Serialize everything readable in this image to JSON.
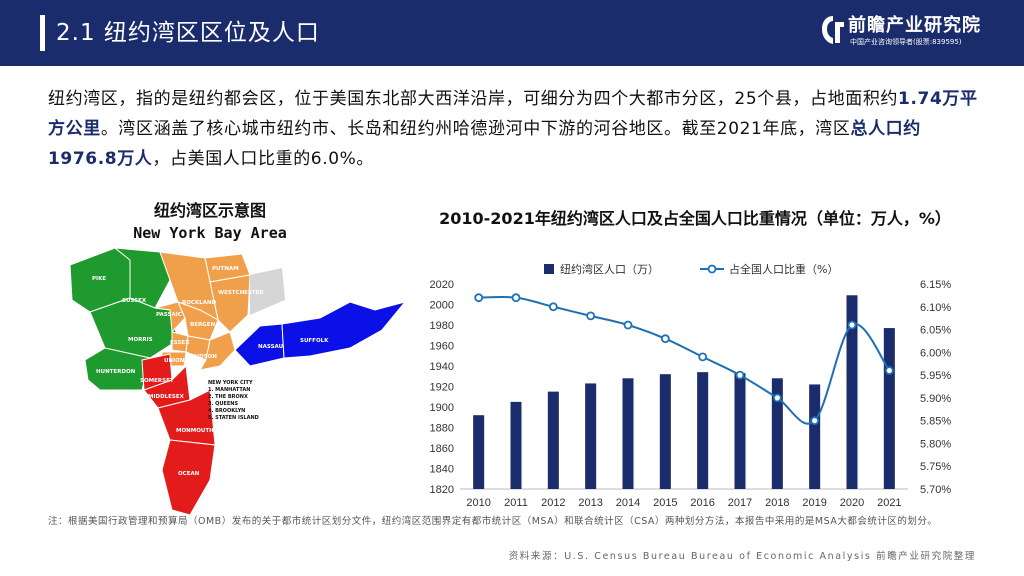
{
  "header": {
    "title": "2.1 纽约湾区区位及人口",
    "logo_name": "前瞻产业研究院",
    "logo_sub": "中国产业咨询领导者(股票:839595)",
    "bg_color": "#1a2c6b"
  },
  "intro": {
    "p1": "纽约湾区，指的是纽约都会区，位于美国东北部大西洋沿岸，可细分为四个大都市分区，25个县，占地面积约",
    "h1": "1.74万平方公里",
    "p2": "。湾区涵盖了核心城市纽约市、长岛和纽约州哈德逊河中下游的河谷地区。截至2021年底，湾区",
    "h2": "总人口约1976.8万人",
    "p3": "，占美国人口比重的6.0%。"
  },
  "map": {
    "title_cn": "纽约湾区示意图",
    "title_en": "New York Bay Area",
    "regions": {
      "pike": "PIKE",
      "sussex": "SUSSEX",
      "morris": "MORRIS",
      "hunterdon": "HUNTERDON",
      "passaic": "PASSAIC",
      "essex": "ESSEX",
      "union": "UNION",
      "somerset": "SOMERSET",
      "middlesex": "MIDDLESEX",
      "monmouth": "MONMOUTH",
      "ocean": "OCEAN",
      "putnam": "PUTNAM",
      "westchester": "WESTCHESTER",
      "rockland": "ROCKLAND",
      "bergen": "BERGEN",
      "hudson": "HUDSON",
      "nassau": "NASSAU",
      "suffolk": "SUFFOLK"
    },
    "nyc_legend": {
      "title": "NEW YORK CITY",
      "items": [
        "1. MANHATTAN",
        "2. THE BRONX",
        "3. QUEENS",
        "4. BROOKLYN",
        "5. STATEN ISLAND"
      ]
    },
    "colors": {
      "green": "#1f9a2e",
      "orange": "#f0a04b",
      "red": "#e31b1b",
      "blue": "#0a10e6",
      "gray": "#d6d6d6"
    }
  },
  "chart_data": {
    "type": "bar",
    "title": "2010-2021年纽约湾区人口及占全国人口比重情况（单位：万人，%）",
    "categories": [
      "2010",
      "2011",
      "2012",
      "2013",
      "2014",
      "2015",
      "2016",
      "2017",
      "2018",
      "2019",
      "2020",
      "2021"
    ],
    "series": [
      {
        "name": "纽约湾区人口（万）",
        "type": "bar",
        "axis": "left",
        "color": "#1a2c6b",
        "values": [
          1892,
          1905,
          1915,
          1923,
          1928,
          1932,
          1934,
          1933,
          1928,
          1922,
          2009,
          1977
        ]
      },
      {
        "name": "占全国人口比重（%）",
        "type": "line",
        "axis": "right",
        "color": "#1f6fb5",
        "values": [
          6.12,
          6.12,
          6.1,
          6.08,
          6.06,
          6.03,
          5.99,
          5.95,
          5.9,
          5.85,
          6.06,
          5.96
        ]
      }
    ],
    "ylim_left": [
      1820,
      2020
    ],
    "yticks_left": [
      "1820",
      "1840",
      "1860",
      "1880",
      "1900",
      "1920",
      "1940",
      "1960",
      "1980",
      "2000",
      "2020"
    ],
    "ylim_right": [
      5.7,
      6.15
    ],
    "yticks_right": [
      "5.70%",
      "5.75%",
      "5.80%",
      "5.85%",
      "5.90%",
      "5.95%",
      "6.00%",
      "6.05%",
      "6.10%",
      "6.15%"
    ],
    "legend": "top-center"
  },
  "footer": {
    "note": "注：根据美国行政管理和预算局（OMB）发布的关于都市统计区划分文件，纽约湾区范围界定有都市统计区（MSA）和联合统计区（CSA）两种划分方法，本报告中采用的是MSA大都会统计区的划分。",
    "source": "资料来源：U.S. Census Bureau Bureau of Economic Analysis 前瞻产业研究院整理"
  }
}
